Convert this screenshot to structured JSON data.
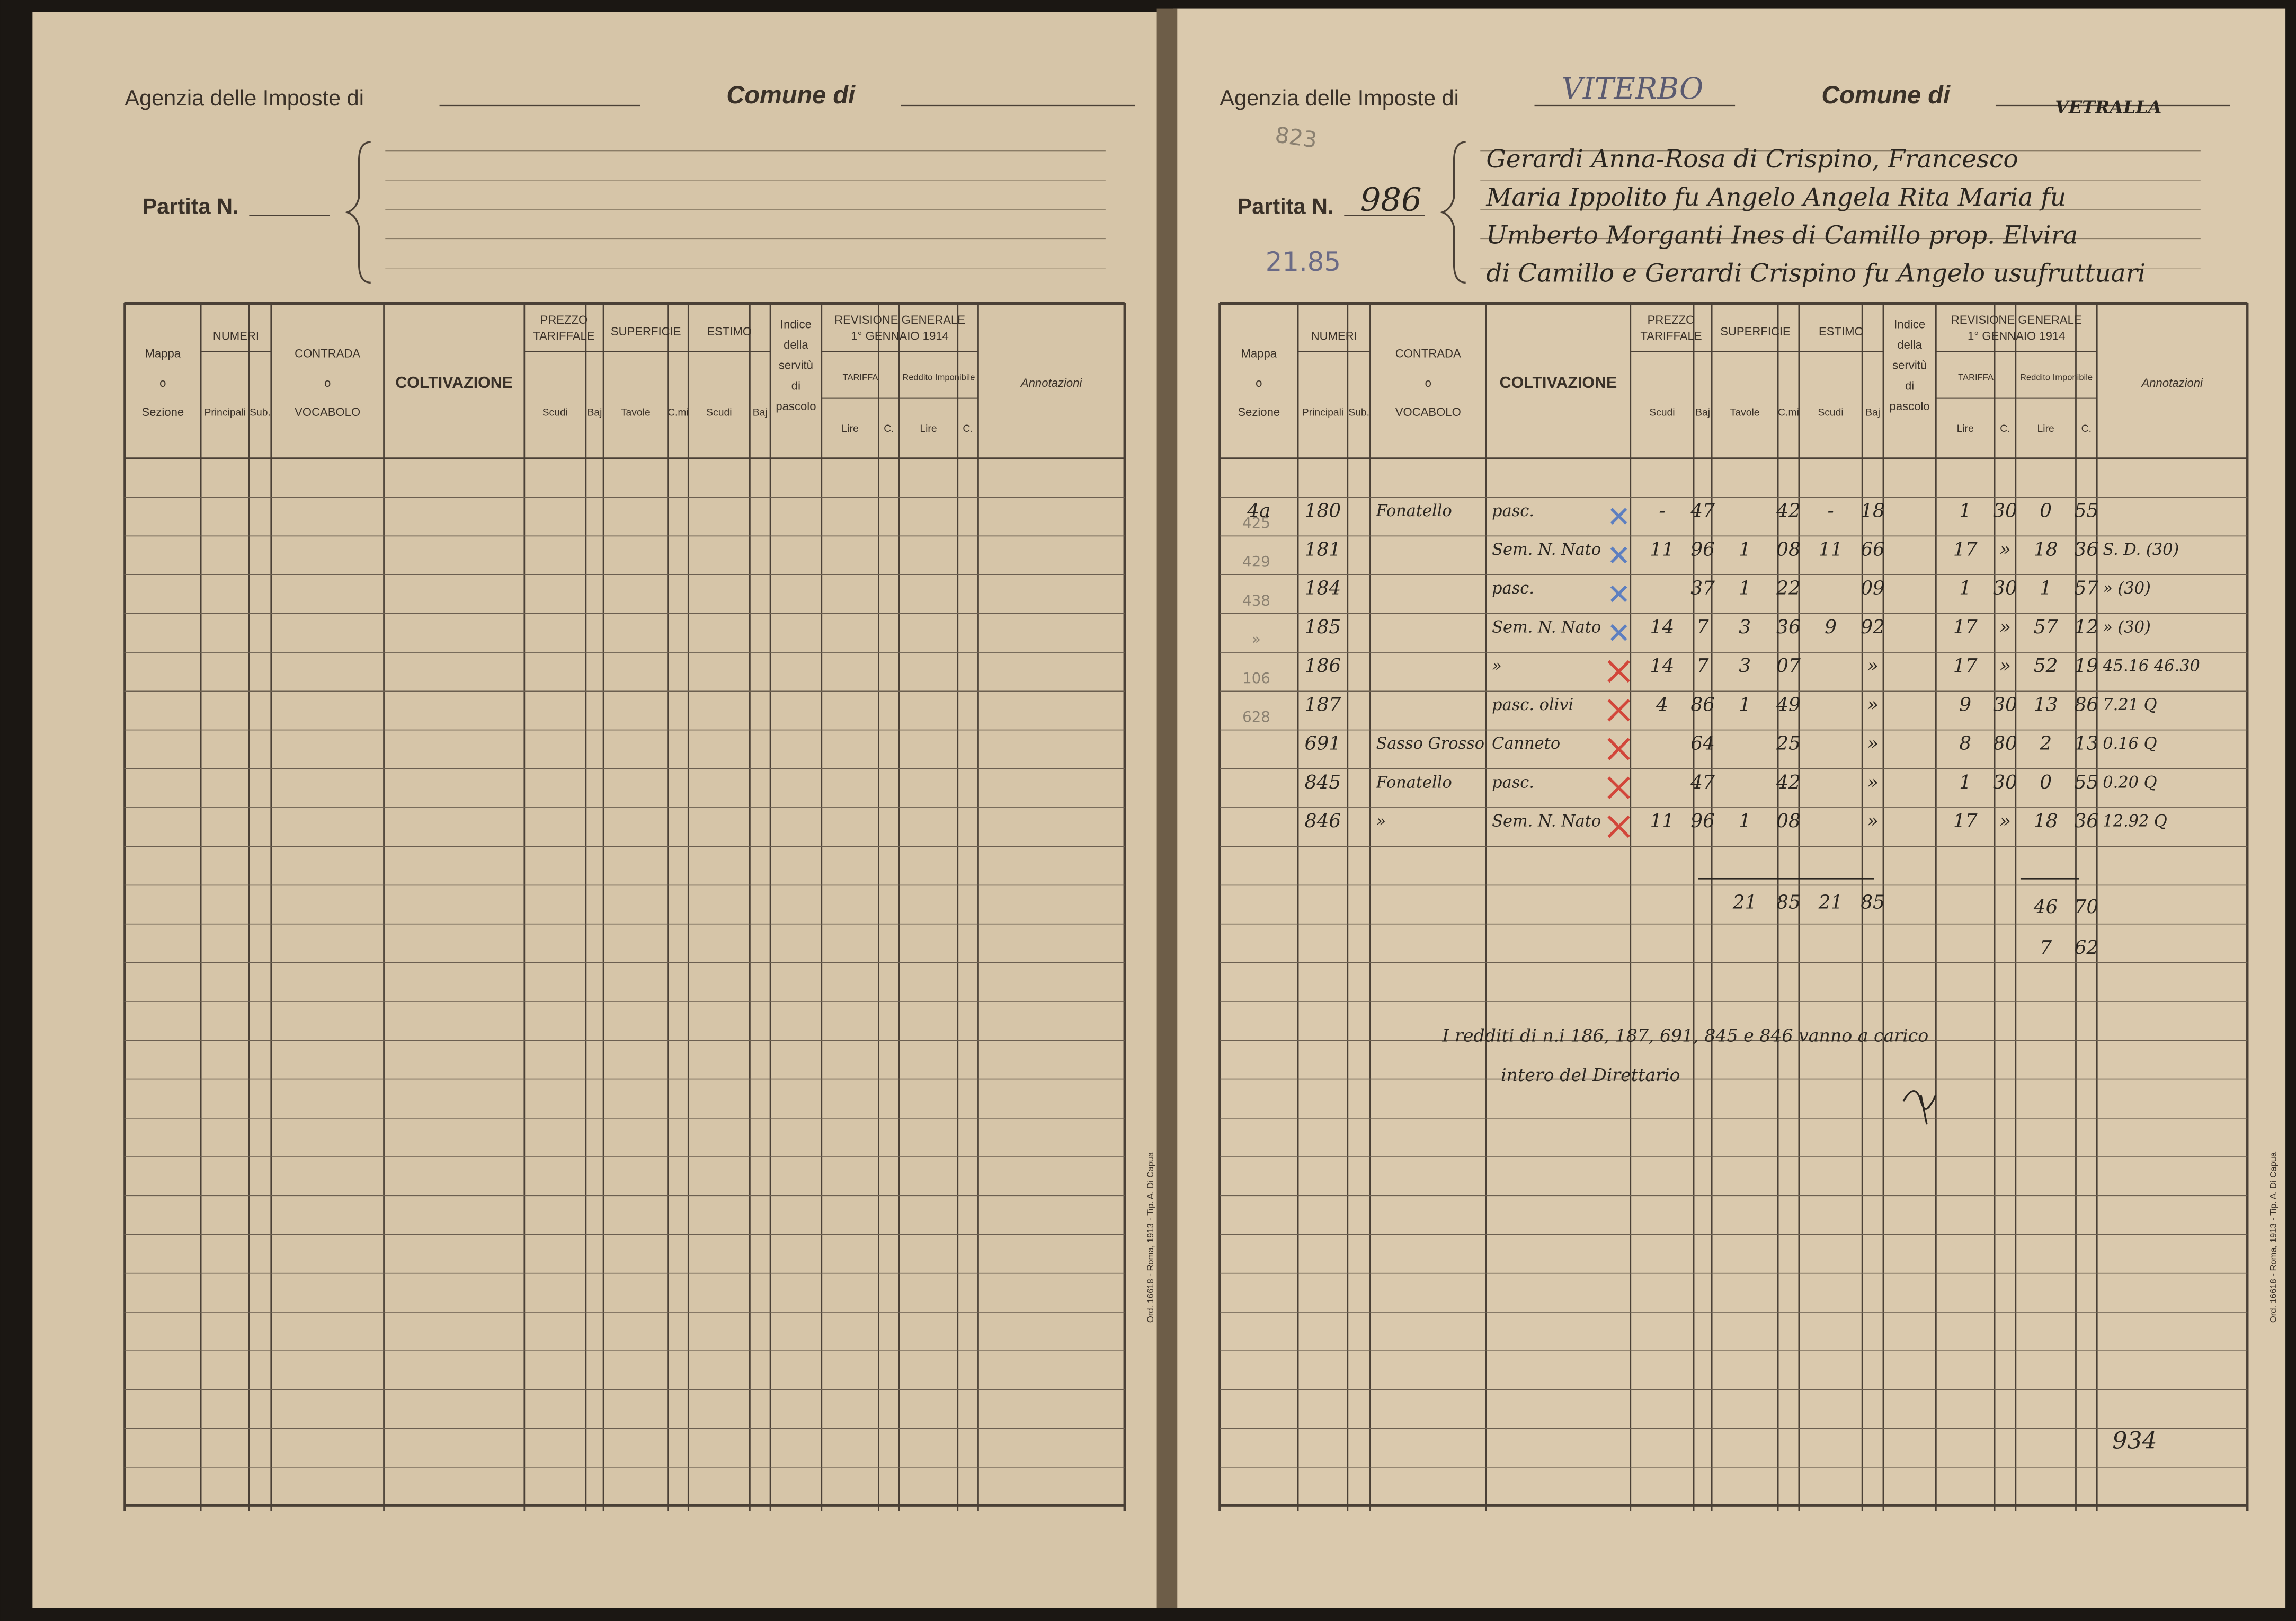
{
  "form": {
    "agency_label": "Agenzia delle Imposte di",
    "comune_label": "Comune di",
    "partita_label": "Partita N.",
    "groups": {
      "numeri": "NUMERI",
      "prezzo": [
        "PREZZO",
        "TARIFFALE"
      ],
      "superficie": "SUPERFICIE",
      "estimo": "ESTIMO",
      "revisione": [
        "REVISIONE GENERALE",
        "1° GENNAIO 1914"
      ],
      "tariffa": "TARIFFA",
      "reddito": "Reddito Imponibile"
    },
    "columns": [
      [
        "Mappa",
        "o",
        "Sezione"
      ],
      [
        "Principali"
      ],
      [
        "Sub."
      ],
      [
        "CONTRADA",
        "o",
        "VOCABOLO"
      ],
      [
        "COLTIVAZIONE"
      ],
      [
        "Scudi"
      ],
      [
        "Baj"
      ],
      [
        "Tavole"
      ],
      [
        "C.mi"
      ],
      [
        "Scudi"
      ],
      [
        "Baj"
      ],
      [
        "Indice",
        "della",
        "servitù",
        "di",
        "pascolo"
      ],
      [
        "Lire"
      ],
      [
        "C."
      ],
      [
        "Lire"
      ],
      [
        "C."
      ],
      [
        "Annotazioni"
      ]
    ],
    "printer": "Ord. 16618 - Roma, 1913 - Tip. A. Di Capua"
  },
  "entry": {
    "agency": "VITERBO",
    "comune": "VETRALLA",
    "partita": "986",
    "old_partita": "823",
    "partita_note": "21.85",
    "owner": [
      "Gerardi Anna-Rosa di Crispino, Francesco",
      "Maria Ippolito fu Angelo Angela Rita Maria fu",
      "Umberto Morganti Ines di Camillo prop. Elvira",
      "di Camillo e Gerardi Crispino fu Angelo usufruttuari"
    ],
    "rows": [
      [
        "4a",
        "180",
        null,
        "Fonatello",
        "pasc.",
        "-",
        "47",
        null,
        "42",
        "-",
        "18",
        null,
        "1",
        "30",
        "0",
        "55",
        null
      ],
      [
        null,
        "181",
        null,
        null,
        "Sem. N. Nato",
        "11",
        "96",
        "1",
        "08",
        "11",
        "66",
        null,
        "17",
        "»",
        "18",
        "36",
        "S. D. (30)"
      ],
      [
        null,
        "184",
        null,
        null,
        "pasc.",
        null,
        "37",
        "1",
        "22",
        null,
        "09",
        null,
        "1",
        "30",
        "1",
        "57",
        "» (30)"
      ],
      [
        null,
        "185",
        null,
        null,
        "Sem. N. Nato",
        "14",
        "7",
        "3",
        "36",
        "9",
        "92",
        null,
        "17",
        "»",
        "57",
        "12",
        "» (30)"
      ],
      [
        null,
        "186",
        null,
        null,
        "»",
        "14",
        "7",
        "3",
        "07",
        null,
        "»",
        null,
        "17",
        "»",
        "52",
        "19",
        "45.16 46.30"
      ],
      [
        null,
        "187",
        null,
        null,
        "pasc. olivi",
        "4",
        "86",
        "1",
        "49",
        null,
        "»",
        null,
        "9",
        "30",
        "13",
        "86",
        "7.21 Q"
      ],
      [
        null,
        "691",
        null,
        "Sasso Grosso",
        "Canneto",
        null,
        "64",
        null,
        "25",
        null,
        "»",
        null,
        "8",
        "80",
        "2",
        "13",
        "0.16 Q"
      ],
      [
        null,
        "845",
        null,
        "Fonatello",
        "pasc.",
        null,
        "47",
        null,
        "42",
        null,
        "»",
        null,
        "1",
        "30",
        "0",
        "55",
        "0.20 Q"
      ],
      [
        null,
        "846",
        null,
        "»",
        "Sem. N. Nato",
        "11",
        "96",
        "1",
        "08",
        null,
        "»",
        null,
        "17",
        "»",
        "18",
        "36",
        "12.92 Q"
      ]
    ],
    "margin_notes": [
      "425",
      "429",
      "438",
      "»",
      "106",
      "628"
    ],
    "totals": {
      "superficie": [
        "21",
        "85"
      ],
      "estimo": [
        "21",
        "85"
      ],
      "reddito": [
        "46",
        "70"
      ],
      "reddito_netto": [
        "7",
        "62"
      ]
    },
    "note": [
      "I redditi di n.i 186, 187, 691, 845 e 846 vanno a carico",
      "intero del Direttario"
    ],
    "page_number": "934"
  }
}
